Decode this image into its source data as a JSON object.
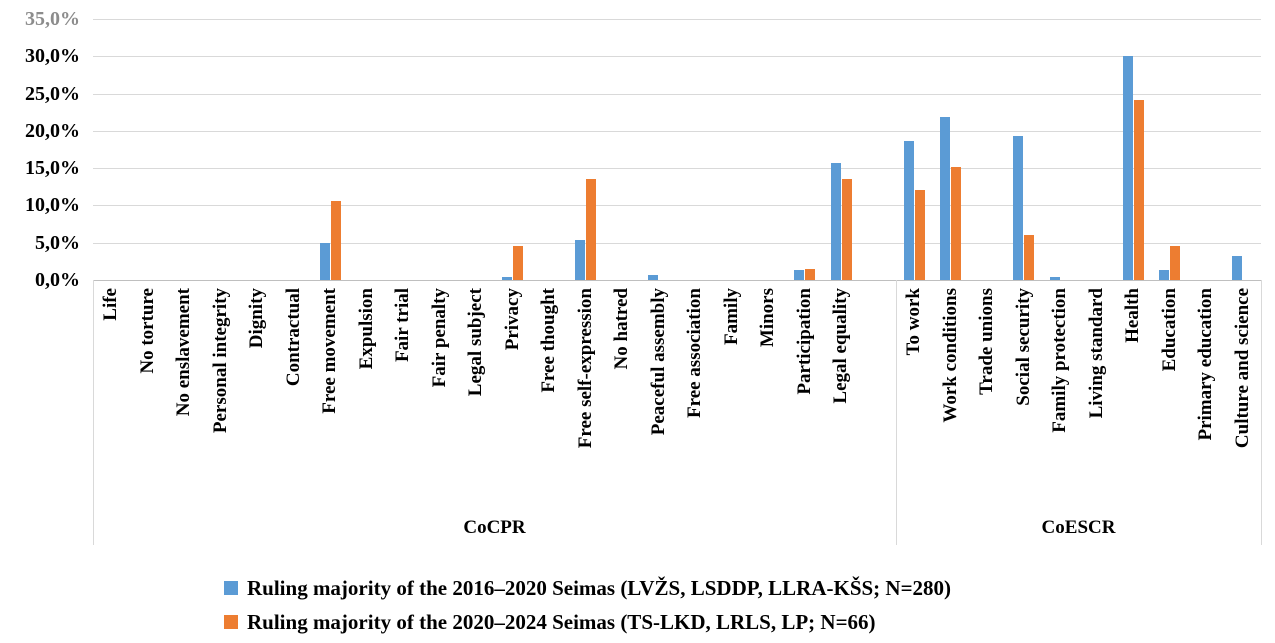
{
  "colors": {
    "series1": "#5B9BD5",
    "series2": "#ED7D31",
    "gridline": "#D9D9D9",
    "axis_line": "#BFBFBF",
    "ytick_top": "#8C8C8C",
    "text": "#000000"
  },
  "chart_data": {
    "type": "bar",
    "title": "",
    "xlabel": "",
    "ylabel": "",
    "grid": true,
    "legend_position": "bottom-left",
    "y_axis": {
      "min": 0,
      "max": 35,
      "step": 5,
      "tick_labels": [
        "0,0%",
        "5,0%",
        "10,0%",
        "15,0%",
        "20,0%",
        "25,0%",
        "30,0%",
        "35,0%"
      ]
    },
    "categories": [
      "Life",
      "No torture",
      "No enslavement",
      "Personal integrity",
      "Dignity",
      "Contractual",
      "Free movement",
      "Expulsion",
      "Fair trial",
      "Fair penalty",
      "Legal subject",
      "Privacy",
      "Free thought",
      "Free self-expression",
      "No hatred",
      "Peaceful assembly",
      "Free association",
      "Family",
      "Minors",
      "Participation",
      "Legal equality",
      "To work",
      "Work conditions",
      "Trade unions",
      "Social security",
      "Family protection",
      "Living standard",
      "Health",
      "Education",
      "Primary education",
      "Culture and science"
    ],
    "groups": [
      {
        "label": "CoCPR",
        "count": 21
      },
      {
        "label": "CoESCR",
        "count": 10
      }
    ],
    "group_gap_slots": 1,
    "series": [
      {
        "name": "Ruling majority of the 2016–2020 Seimas (LVŽS, LSDDP, LLRA-KŠS; N=280)",
        "color": "#5B9BD5",
        "values": [
          0,
          0,
          0,
          0,
          0,
          0,
          5.0,
          0,
          0,
          0,
          0,
          0.4,
          0,
          5.4,
          0,
          0.7,
          0,
          0,
          0,
          1.4,
          15.7,
          18.6,
          21.8,
          0,
          19.3,
          0.4,
          0,
          30.0,
          1.4,
          0,
          3.2
        ]
      },
      {
        "name": "Ruling majority of the 2020–2024 Seimas (TS-LKD, LRLS, LP; N=66)",
        "color": "#ED7D31",
        "values": [
          0,
          0,
          0,
          0,
          0,
          0,
          10.6,
          0,
          0,
          0,
          0,
          4.5,
          0,
          13.6,
          0,
          0,
          0,
          0,
          0,
          1.5,
          13.6,
          12.1,
          15.2,
          0,
          6.1,
          0,
          0,
          24.2,
          4.5,
          0,
          0
        ]
      }
    ]
  }
}
